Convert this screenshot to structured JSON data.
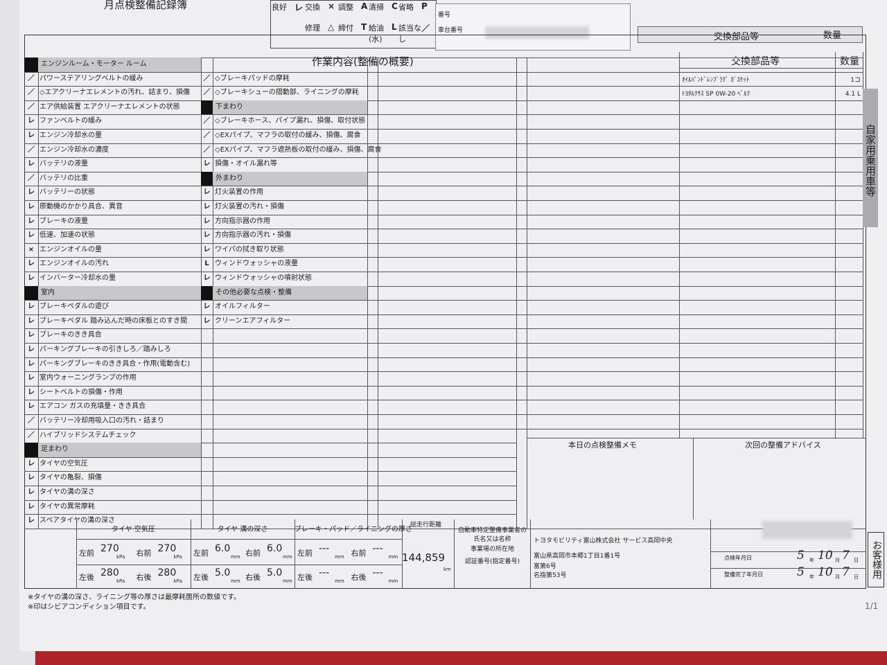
{
  "header": {
    "title": "月点検整備記録簿",
    "legend": [
      {
        "label": "良好",
        "symbol": "レ"
      },
      {
        "label": "交換",
        "symbol": "×"
      },
      {
        "label": "調整",
        "symbol": "A"
      },
      {
        "label": "清掃",
        "symbol": "C"
      },
      {
        "label": "省略",
        "symbol": "P"
      },
      {
        "label": "修理",
        "symbol": "△"
      },
      {
        "label": "締付",
        "symbol": "T"
      },
      {
        "label": "給油(水)",
        "symbol": "L"
      },
      {
        "label": "該当なし",
        "symbol": "／"
      }
    ],
    "number_label": "番号",
    "chassis_label": "車台番号",
    "back_parts": "交換部品等",
    "back_qty": "数量"
  },
  "columns": {
    "work": "作業内容(整備の概要)",
    "parts": "交換部品等",
    "qty": "数量"
  },
  "left_items": [
    {
      "section": "エンジンルーム・モーター ルーム"
    },
    {
      "mark": "／",
      "label": "パワーステアリングベルトの緩み"
    },
    {
      "mark": "／",
      "label": "◇エアクリーナエレメントの汚れ、詰まり、損傷"
    },
    {
      "mark": "／",
      "label": "エア供給装置 エアクリーナエレメントの状態"
    },
    {
      "mark": "レ",
      "label": "ファンベルトの緩み"
    },
    {
      "mark": "レ",
      "label": "エンジン冷却水の量"
    },
    {
      "mark": "／",
      "label": "エンジン冷却水の濃度"
    },
    {
      "mark": "レ",
      "label": "バッテリの液量"
    },
    {
      "mark": "／",
      "label": "バッテリの比重"
    },
    {
      "mark": "レ",
      "label": "バッテリーの状態"
    },
    {
      "mark": "レ",
      "label": "原動機のかかり具合、異音"
    },
    {
      "mark": "レ",
      "label": "ブレーキの液量"
    },
    {
      "mark": "レ",
      "label": "低速、加速の状態"
    },
    {
      "mark": "×",
      "label": "エンジンオイルの量"
    },
    {
      "mark": "レ",
      "label": "エンジンオイルの汚れ"
    },
    {
      "mark": "レ",
      "label": "インバーター冷却水の量"
    },
    {
      "section": "室内"
    },
    {
      "mark": "レ",
      "label": "ブレーキペダルの遊び"
    },
    {
      "mark": "レ",
      "label": "ブレーキペダル 踏み込んだ時の床板とのすき間"
    },
    {
      "mark": "レ",
      "label": "ブレーキのきき具合"
    },
    {
      "mark": "レ",
      "label": "パーキングブレーキの引きしろ／踏みしろ"
    },
    {
      "mark": "レ",
      "label": "パーキングブレーキのきき具合・作用(電動含む)"
    },
    {
      "mark": "レ",
      "label": "室内ウォーニングランプの作用"
    },
    {
      "mark": "レ",
      "label": "シートベルトの損傷・作用"
    },
    {
      "mark": "レ",
      "label": "エアコン ガスの充填量・きき具合"
    },
    {
      "mark": "／",
      "label": "バッテリー冷却用吸入口の汚れ・詰まり"
    },
    {
      "mark": "／",
      "label": "ハイブリッドシステムチェック"
    },
    {
      "section": "足まわり"
    },
    {
      "mark": "レ",
      "label": "タイヤの空気圧"
    },
    {
      "mark": "レ",
      "label": "タイヤの亀裂、損傷"
    },
    {
      "mark": "レ",
      "label": "タイヤの溝の深さ"
    },
    {
      "mark": "レ",
      "label": "タイヤの異常摩耗"
    },
    {
      "mark": "レ",
      "label": "スペアタイヤの溝の深さ"
    }
  ],
  "middle_items": [
    {
      "mark": "／",
      "label": "◇ブレーキパッドの摩耗"
    },
    {
      "mark": "／",
      "label": "◇ブレーキシューの摺動部、ライニングの摩耗"
    },
    {
      "section": "下まわり"
    },
    {
      "mark": "／",
      "label": "◇ブレーキホース、パイプ漏れ、損傷、取付状態"
    },
    {
      "mark": "／",
      "label": "◇EXパイプ、マフラの取付の緩み、損傷、腐食"
    },
    {
      "mark": "／",
      "label": "◇EXパイプ、マフラ遮熱板の取付の緩み、損傷、腐食"
    },
    {
      "mark": "レ",
      "label": "損傷・オイル漏れ等"
    },
    {
      "section": "外まわり"
    },
    {
      "mark": "レ",
      "label": "灯火装置の作用"
    },
    {
      "mark": "レ",
      "label": "灯火装置の汚れ・損傷"
    },
    {
      "mark": "レ",
      "label": "方向指示器の作用"
    },
    {
      "mark": "レ",
      "label": "方向指示器の汚れ・損傷"
    },
    {
      "mark": "レ",
      "label": "ワイパの拭き取り状態"
    },
    {
      "mark": "L",
      "label": "ウィンドウォッシャの液量"
    },
    {
      "mark": "レ",
      "label": "ウィンドウォッシャの噴射状態"
    },
    {
      "section": "その他必要な点検・整備"
    },
    {
      "mark": "レ",
      "label": "オイルフィルター"
    },
    {
      "mark": "レ",
      "label": "クリーンエアフィルター"
    }
  ],
  "parts": [
    {
      "name": "ｵｲﾙﾊﾟﾝﾄﾞﾚﾝﾌﾟﾗｸﾞ ｶﾞｽｹｯﾄ",
      "qty": "1コ"
    },
    {
      "name": "ﾄﾖﾀﾙｸｻｽ SP 0W-20 ﾍﾞﾙｸ",
      "qty": "4.1 L"
    }
  ],
  "vehicle_type": "自家用乗用車等",
  "memo_title": "本日の点検整備メモ",
  "advice_title": "次回の整備アドバイス",
  "measurements": {
    "pressure": {
      "title": "タイヤ 空気圧",
      "unit": "kPa",
      "cells": [
        [
          "左前",
          "270"
        ],
        [
          "右前",
          "270"
        ],
        [
          "左後",
          "280"
        ],
        [
          "右後",
          "280"
        ]
      ]
    },
    "tread": {
      "title": "タイヤ 溝の深さ",
      "unit": "mm",
      "cells": [
        [
          "左前",
          "6.0"
        ],
        [
          "右前",
          "6.0"
        ],
        [
          "左後",
          "5.0"
        ],
        [
          "右後",
          "5.0"
        ]
      ]
    },
    "brake": {
      "title": "ブレーキ・パッド／ライニングの厚さ",
      "unit": "mm",
      "cells": [
        [
          "左前",
          "---"
        ],
        [
          "右前",
          "---"
        ],
        [
          "左後",
          "---"
        ],
        [
          "右後",
          "---"
        ]
      ]
    },
    "odometer": {
      "title": "総走行距離",
      "value": "144,859",
      "unit": "km"
    }
  },
  "business": {
    "name_label": "自動車特定整備事業者の氏名又は名称",
    "address_label": "事業場の所在地",
    "cert_label": "認証番号(指定番号)",
    "name": "トヨタモビリティ富山株式会社 サービス高岡中央",
    "address": "富山県高岡市本郷1丁目1番1号",
    "cert": "富第6号",
    "designation": "名指第53号"
  },
  "dates": [
    {
      "label": "点検年月日",
      "year": "5",
      "y": "年",
      "month": "10",
      "m": "月",
      "day": "7",
      "d": "日"
    },
    {
      "label": "整備完了年月日",
      "year": "5",
      "y": "年",
      "month": "10",
      "m": "月",
      "day": "7",
      "d": "日"
    }
  ],
  "copy_label": "お客様用",
  "notes": [
    "※タイヤの溝の深さ、ライニング等の厚さは最摩耗箇所の数値です。",
    "※印はシビアコンディション項目です。"
  ],
  "page_number": "1/1"
}
